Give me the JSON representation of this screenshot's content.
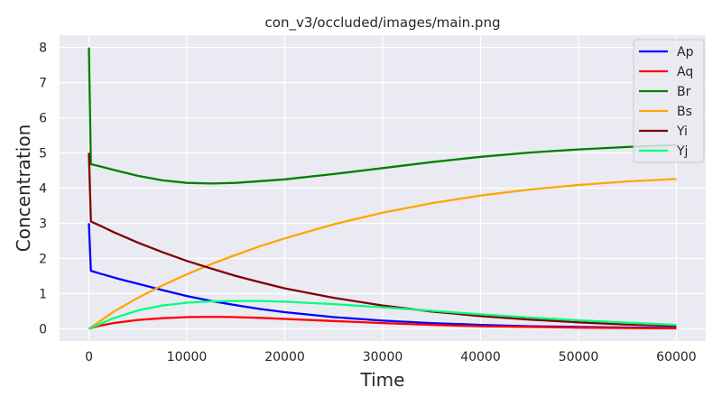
{
  "chart_data": {
    "type": "line",
    "title": "con_v3/occluded/images/main.png",
    "xlabel": "Time",
    "ylabel": "Concentration",
    "xlim": [
      -3000,
      63000
    ],
    "ylim": [
      -0.35,
      8.35
    ],
    "xticks": [
      0,
      10000,
      20000,
      30000,
      40000,
      50000,
      60000
    ],
    "yticks": [
      0,
      1,
      2,
      3,
      4,
      5,
      6,
      7,
      8
    ],
    "grid": true,
    "legend_position": "top-right",
    "series": [
      {
        "name": "Ap",
        "color": "#0000ff",
        "x": [
          0,
          200,
          1000,
          3000,
          5000,
          7500,
          10000,
          12500,
          15000,
          17500,
          20000,
          25000,
          30000,
          35000,
          40000,
          45000,
          50000,
          55000,
          60000
        ],
        "y": [
          3.0,
          1.65,
          1.58,
          1.42,
          1.28,
          1.1,
          0.93,
          0.79,
          0.67,
          0.56,
          0.47,
          0.33,
          0.23,
          0.16,
          0.11,
          0.07,
          0.05,
          0.035,
          0.025
        ]
      },
      {
        "name": "Aq",
        "color": "#ff0000",
        "x": [
          0,
          1000,
          2500,
          5000,
          7500,
          10000,
          12500,
          15000,
          17500,
          20000,
          25000,
          30000,
          35000,
          40000,
          45000,
          50000,
          55000,
          60000
        ],
        "y": [
          0.0,
          0.08,
          0.16,
          0.25,
          0.3,
          0.33,
          0.34,
          0.33,
          0.31,
          0.28,
          0.22,
          0.16,
          0.11,
          0.07,
          0.05,
          0.03,
          0.02,
          0.01
        ]
      },
      {
        "name": "Br",
        "color": "#008000",
        "x": [
          0,
          200,
          1000,
          2500,
          5000,
          7500,
          10000,
          12500,
          15000,
          20000,
          25000,
          30000,
          35000,
          40000,
          45000,
          50000,
          55000,
          60000
        ],
        "y": [
          8.0,
          4.68,
          4.63,
          4.52,
          4.35,
          4.22,
          4.15,
          4.13,
          4.15,
          4.25,
          4.4,
          4.57,
          4.74,
          4.89,
          5.01,
          5.1,
          5.17,
          5.23
        ]
      },
      {
        "name": "Bs",
        "color": "#ffa500",
        "x": [
          0,
          2500,
          5000,
          7500,
          10000,
          12500,
          15000,
          17500,
          20000,
          25000,
          30000,
          35000,
          40000,
          45000,
          50000,
          55000,
          60000
        ],
        "y": [
          0.0,
          0.48,
          0.88,
          1.23,
          1.55,
          1.84,
          2.1,
          2.35,
          2.57,
          2.97,
          3.3,
          3.57,
          3.79,
          3.96,
          4.09,
          4.19,
          4.26
        ]
      },
      {
        "name": "Yi",
        "color": "#800000",
        "x": [
          0,
          200,
          1000,
          2500,
          5000,
          7500,
          10000,
          12500,
          15000,
          17500,
          20000,
          25000,
          30000,
          35000,
          40000,
          45000,
          50000,
          55000,
          60000
        ],
        "y": [
          5.0,
          3.05,
          2.95,
          2.75,
          2.45,
          2.18,
          1.93,
          1.71,
          1.5,
          1.32,
          1.15,
          0.88,
          0.66,
          0.49,
          0.36,
          0.26,
          0.18,
          0.12,
          0.08
        ]
      },
      {
        "name": "Yj",
        "color": "#00ff7f",
        "x": [
          0,
          2500,
          5000,
          7500,
          10000,
          12500,
          15000,
          17500,
          20000,
          25000,
          30000,
          35000,
          40000,
          45000,
          50000,
          55000,
          60000
        ],
        "y": [
          0.0,
          0.3,
          0.52,
          0.66,
          0.74,
          0.78,
          0.79,
          0.79,
          0.77,
          0.7,
          0.61,
          0.51,
          0.41,
          0.32,
          0.24,
          0.17,
          0.11
        ]
      }
    ]
  }
}
